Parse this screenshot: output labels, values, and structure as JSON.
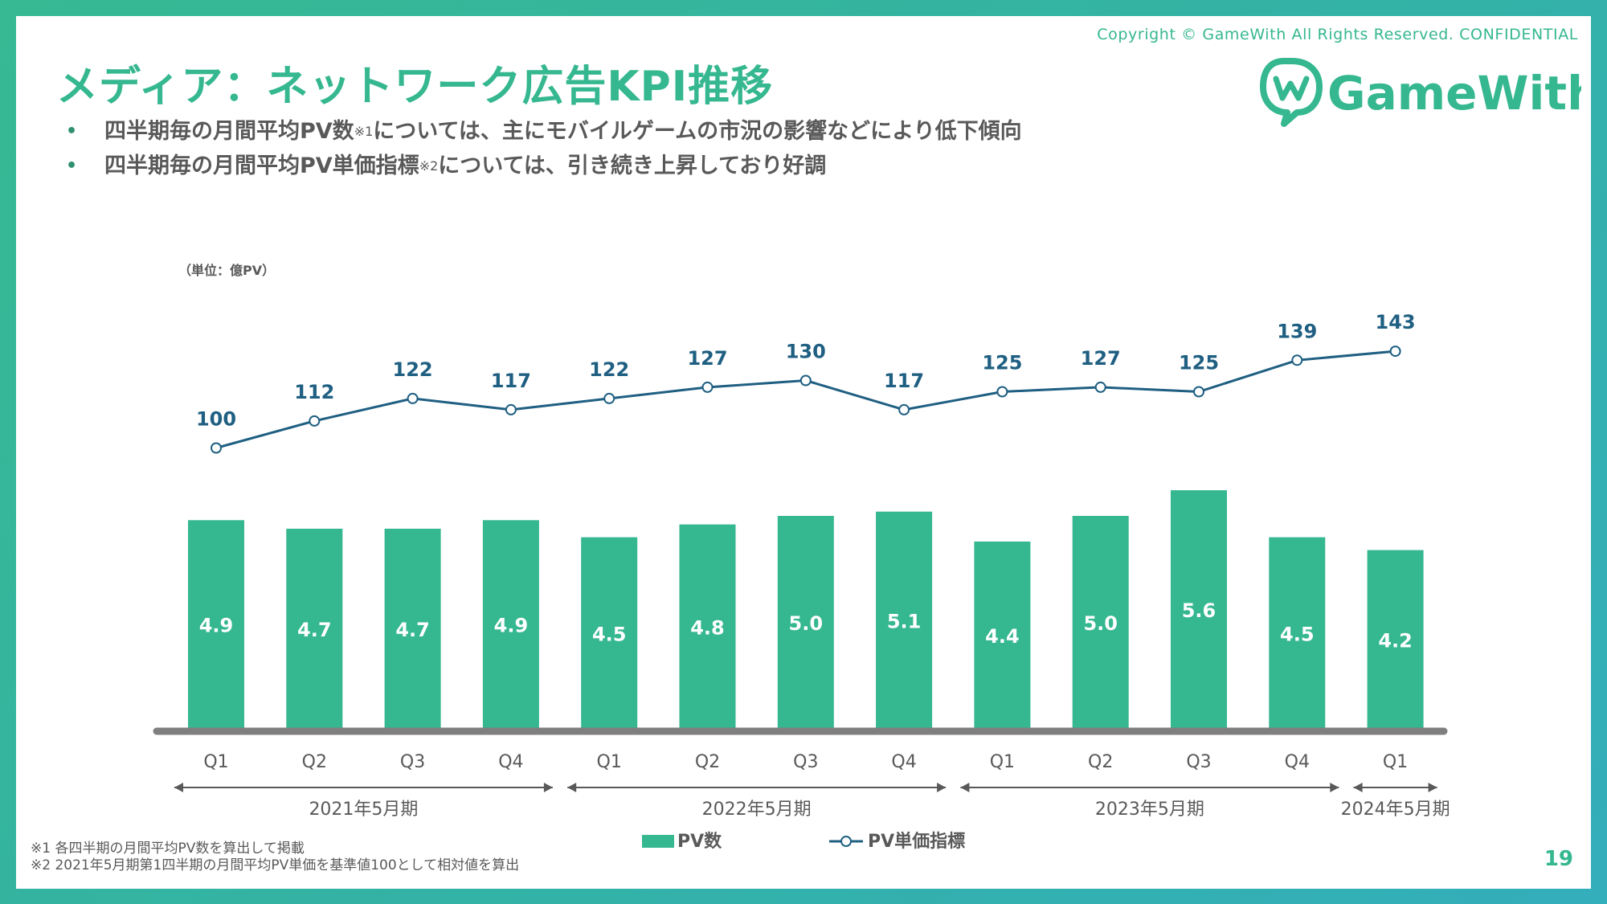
{
  "copyright": "Copyright © GameWith All Rights Reserved. CONFIDENTIAL",
  "title": "メディア：ネットワーク広告KPI推移",
  "logo_text": "GameWith",
  "bullets": [
    {
      "text": "四半期毎の月間平均PV数",
      "sup": "※1",
      "rest": "については、主にモバイルゲームの市況の影響などにより低下傾向"
    },
    {
      "text": "四半期毎の月間平均PV単価指標",
      "sup": "※2",
      "rest": "については、引き続き上昇しており好調"
    }
  ],
  "footnotes": [
    "※1 各四半期の月間平均PV数を算出して掲載",
    "※2 2021年5月期第1四半期の月間平均PV単価を基準値100として相対値を算出"
  ],
  "page_number": "19",
  "colors": {
    "bar": "#35b78f",
    "line": "#1f5f82",
    "axis": "#7f7f7f",
    "accent": "#35b78f"
  },
  "chart_data": {
    "type": "bar+line",
    "unit_label": "（単位：億PV）",
    "categories": [
      "Q1",
      "Q2",
      "Q3",
      "Q4",
      "Q1",
      "Q2",
      "Q3",
      "Q4",
      "Q1",
      "Q2",
      "Q3",
      "Q4",
      "Q1"
    ],
    "groups": [
      {
        "label": "2021年5月期",
        "quarters": 4
      },
      {
        "label": "2022年5月期",
        "quarters": 4
      },
      {
        "label": "2023年5月期",
        "quarters": 4
      },
      {
        "label": "2024年5月期",
        "quarters": 1
      }
    ],
    "series": [
      {
        "name": "PV数",
        "type": "bar",
        "values": [
          4.9,
          4.7,
          4.7,
          4.9,
          4.5,
          4.8,
          5.0,
          5.1,
          4.4,
          5.0,
          5.6,
          4.5,
          4.2
        ]
      },
      {
        "name": "PV単価指標",
        "type": "line",
        "values": [
          100,
          112,
          122,
          117,
          122,
          127,
          130,
          117,
          125,
          127,
          125,
          139,
          143
        ]
      }
    ],
    "legend": [
      "PV数",
      "PV単価指標"
    ],
    "legend_position": "bottom-center"
  }
}
